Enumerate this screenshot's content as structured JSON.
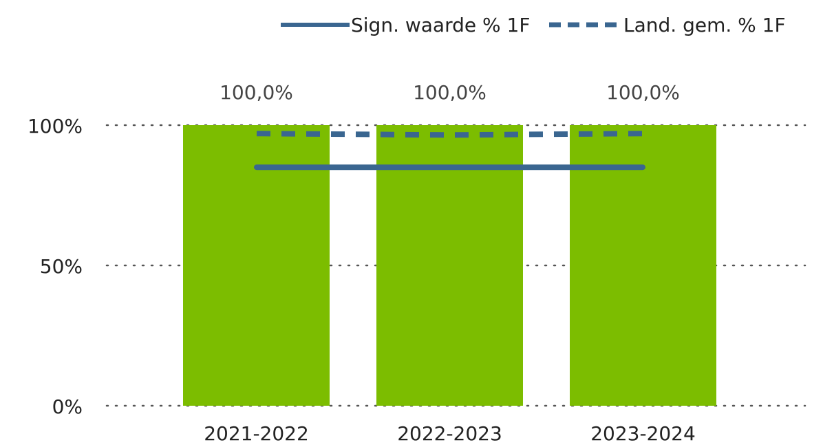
{
  "chart_data": {
    "type": "bar",
    "categories": [
      "2021-2022",
      "2022-2023",
      "2023-2024"
    ],
    "values": [
      100,
      100,
      100
    ],
    "data_labels": [
      "100,0%",
      "100,0%",
      "100,0%"
    ],
    "ylim": [
      0,
      100
    ],
    "y_ticks": [
      {
        "value": 0,
        "label": "0%"
      },
      {
        "value": 50,
        "label": "50%"
      },
      {
        "value": 100,
        "label": "100%"
      }
    ],
    "grid": "dotted",
    "bar_color": "#7cbd00",
    "lines": [
      {
        "name": "Sign. waarde % 1F",
        "style": "solid",
        "color": "#3a6690",
        "values": [
          85,
          85,
          85
        ]
      },
      {
        "name": "Land. gem. % 1F",
        "style": "dashed",
        "color": "#3a6690",
        "values": [
          97,
          96.5,
          97
        ]
      }
    ],
    "legend_position": "top-right"
  }
}
